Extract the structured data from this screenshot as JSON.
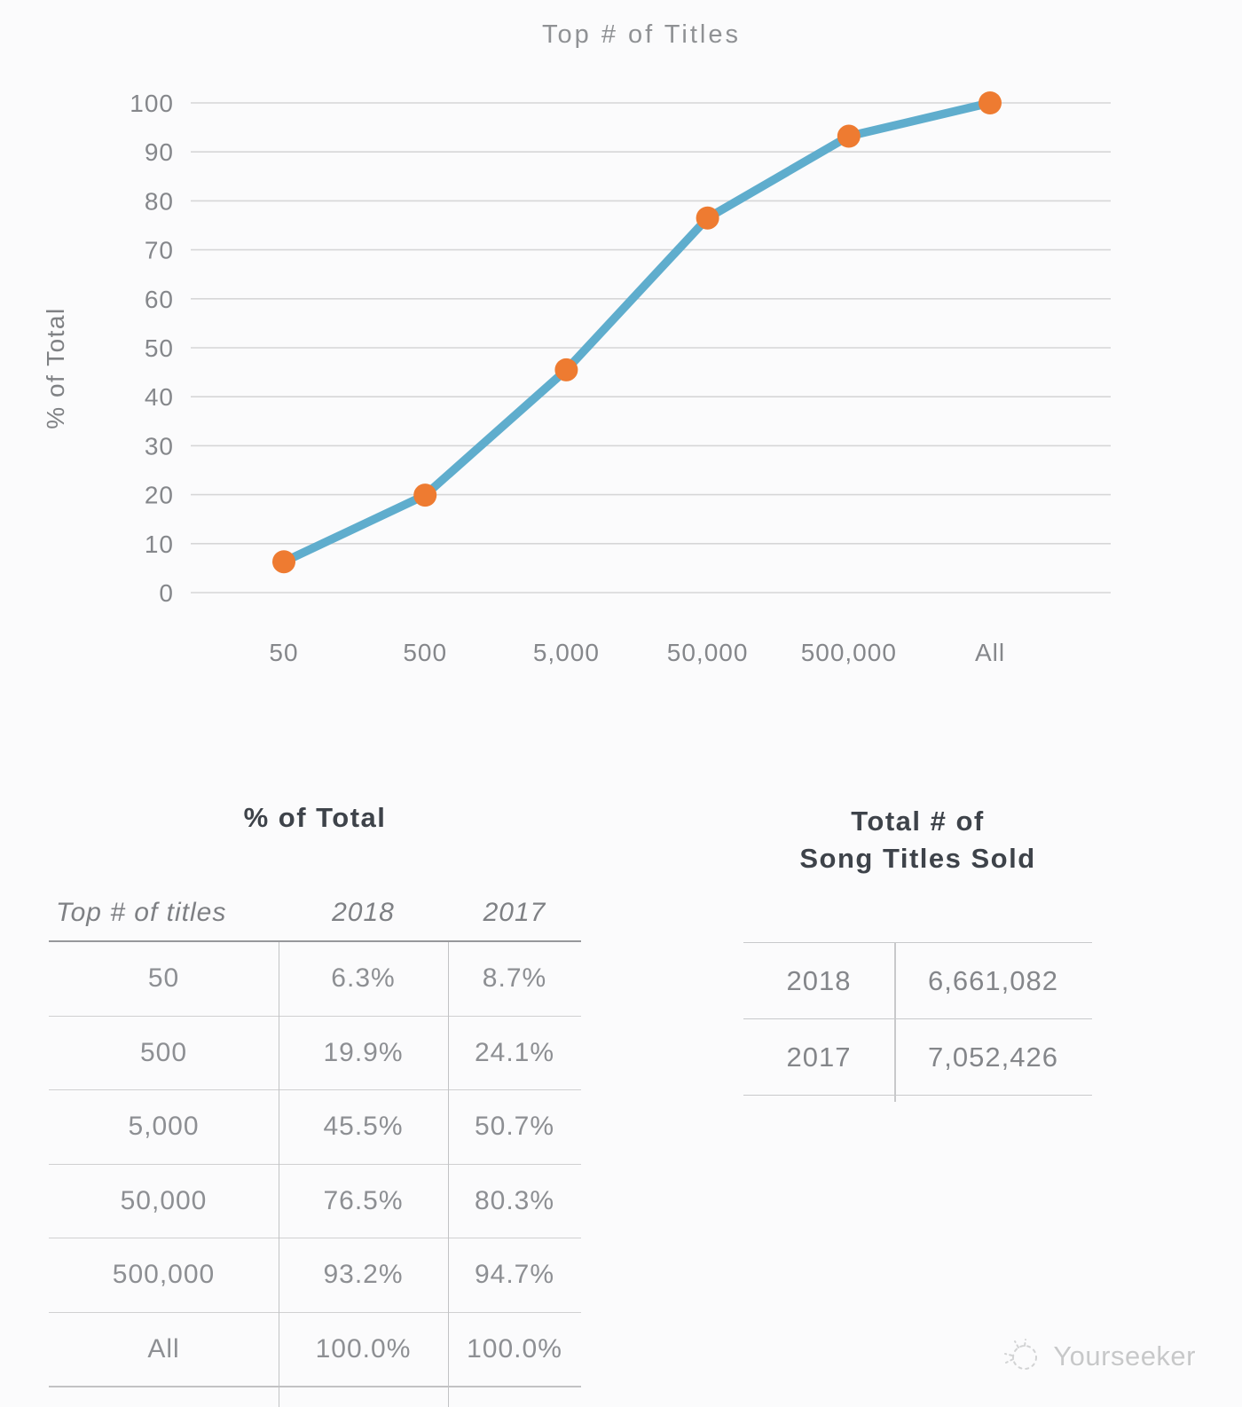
{
  "chart_data": [
    {
      "type": "line",
      "title": "Top # of Titles",
      "xlabel": "",
      "ylabel": "% of Total",
      "categories": [
        "50",
        "500",
        "5,000",
        "50,000",
        "500,000",
        "All"
      ],
      "series": [
        {
          "name": "2018",
          "values": [
            6.3,
            19.9,
            45.5,
            76.5,
            93.2,
            100.0
          ]
        }
      ],
      "ylim": [
        0,
        100
      ],
      "ytick_step": 10,
      "grid": true,
      "legend_position": "none",
      "line_color": "#5FADCD",
      "marker_color": "#EE7B31",
      "grid_color": "#D6D6D7"
    },
    {
      "type": "table",
      "title": "% of Total",
      "columns": [
        "Top # of titles",
        "2018",
        "2017"
      ],
      "rows": [
        [
          "50",
          "6.3%",
          "8.7%"
        ],
        [
          "500",
          "19.9%",
          "24.1%"
        ],
        [
          "5,000",
          "45.5%",
          "50.7%"
        ],
        [
          "50,000",
          "76.5%",
          "80.3%"
        ],
        [
          "500,000",
          "93.2%",
          "94.7%"
        ],
        [
          "All",
          "100.0%",
          "100.0%"
        ]
      ]
    },
    {
      "type": "table",
      "title": "Total # of Song Titles Sold",
      "title_lines": [
        "Total # of",
        "Song Titles Sold"
      ],
      "rows": [
        [
          "2018",
          "6,661,082"
        ],
        [
          "2017",
          "7,052,426"
        ]
      ]
    }
  ],
  "watermark": {
    "label": "Yourseeker",
    "icon": "yourseeker-logo-icon"
  },
  "colors": {
    "background": "#FBFBFC",
    "line": "#5FADCD",
    "marker": "#EE7B31",
    "grid": "#D6D6D7",
    "tick_text": "#85878B",
    "title_text": "#8F9194",
    "table_title_text": "#3E434A",
    "table_cell_text": "#8D8F93"
  }
}
